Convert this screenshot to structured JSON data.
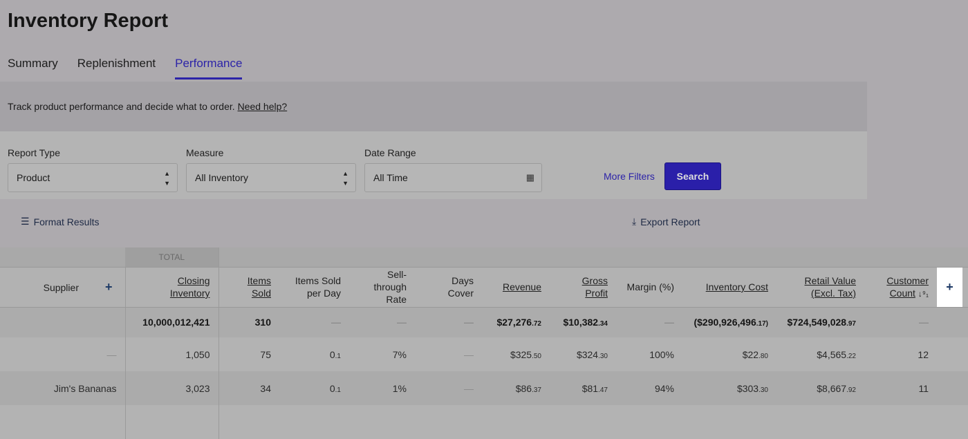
{
  "page": {
    "title": "Inventory Report"
  },
  "tabs": [
    {
      "label": "Summary"
    },
    {
      "label": "Replenishment"
    },
    {
      "label": "Performance",
      "active": true
    }
  ],
  "banner": {
    "text": "Track product performance and decide what to order.",
    "link": "Need help?"
  },
  "filters": {
    "report_type": {
      "label": "Report Type",
      "value": "Product"
    },
    "measure": {
      "label": "Measure",
      "value": "All Inventory"
    },
    "date_range": {
      "label": "Date Range",
      "value": "All Time",
      "icon": "calendar-icon"
    },
    "more_filters": "More Filters",
    "search": "Search"
  },
  "actions": {
    "format": "Format Results",
    "export": "Export Report"
  },
  "table": {
    "total_label": "TOTAL",
    "headers": {
      "supplier": "Supplier",
      "closing": [
        "Closing",
        "Inventory"
      ],
      "items_sold": "Items Sold",
      "per_day": [
        "Items Sold",
        "per Day"
      ],
      "sell_through": [
        "Sell-",
        "through",
        "Rate"
      ],
      "days_cover": [
        "Days",
        "Cover"
      ],
      "revenue": "Revenue",
      "gross_profit": [
        "Gross",
        "Profit"
      ],
      "margin": "Margin (%)",
      "inventory_cost": "Inventory Cost",
      "retail_value": [
        "Retail Value",
        "(Excl. Tax)"
      ],
      "customer_count": [
        "Customer",
        "Count"
      ]
    },
    "totals": {
      "closing": "10,000,012,421",
      "items_sold": "310",
      "per_day": "—",
      "sell_through": "—",
      "days_cover": "—",
      "revenue": [
        "$27,276",
        ".72"
      ],
      "gross_profit": [
        "$10,382",
        ".34"
      ],
      "margin": "—",
      "inventory_cost": [
        "($290,926,496",
        ".17)"
      ],
      "retail_value": [
        "$724,549,028",
        ".97"
      ],
      "customer_count": "—"
    },
    "rows": [
      {
        "supplier": "—",
        "closing": "1,050",
        "items_sold": "75",
        "per_day": [
          "0",
          ".1"
        ],
        "sell_through": "7%",
        "days_cover": "—",
        "revenue": [
          "$325",
          ".50"
        ],
        "gross_profit": [
          "$324",
          ".30"
        ],
        "margin": "100%",
        "inventory_cost": [
          "$22",
          ".80"
        ],
        "retail_value": [
          "$4,565",
          ".22"
        ],
        "customer_count": "12"
      },
      {
        "supplier": "Jim's Bananas",
        "closing": "3,023",
        "items_sold": "34",
        "per_day": [
          "0",
          ".1"
        ],
        "sell_through": "1%",
        "days_cover": "—",
        "revenue": [
          "$86",
          ".37"
        ],
        "gross_profit": [
          "$81",
          ".47"
        ],
        "margin": "94%",
        "inventory_cost": [
          "$303",
          ".30"
        ],
        "retail_value": [
          "$8,667",
          ".92"
        ],
        "customer_count": "11"
      }
    ]
  },
  "colors": {
    "accent": "#2c23a8",
    "button": "#2a1fa9"
  }
}
